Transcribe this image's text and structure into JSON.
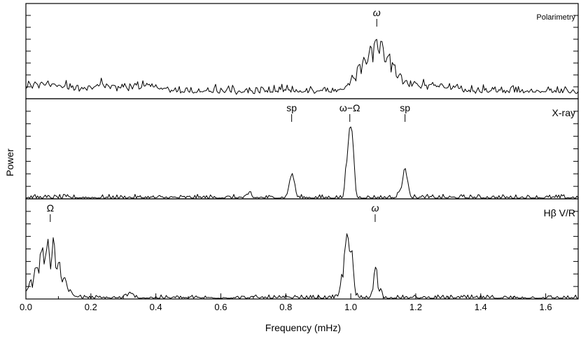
{
  "chart_data": {
    "type": "line",
    "xlabel": "Frequency (mHz)",
    "ylabel": "Power",
    "xlim": [
      0.0,
      1.7
    ],
    "x_ticks": [
      "0.0",
      "0.2",
      "0.4",
      "0.6",
      "0.8",
      "1.0",
      "1.2",
      "1.4",
      "1.6"
    ],
    "x_step": 0.004,
    "panels": [
      {
        "label": "Polarimetry",
        "ylim": [
          0,
          1
        ],
        "trace": {
          "baseline": 0.06,
          "noise": 0.08,
          "osc": 0.35,
          "humps": [
            {
              "f": 0.06,
              "a": 0.1,
              "w": 0.05
            },
            {
              "f": 0.24,
              "a": 0.08,
              "w": 0.04
            },
            {
              "f": 0.37,
              "a": 0.07,
              "w": 0.04
            },
            {
              "f": 1.08,
              "a": 0.56,
              "w": 0.045
            },
            {
              "f": 1.25,
              "a": 0.07,
              "w": 0.06
            }
          ]
        },
        "annotations": [
          {
            "text": "ω",
            "f": 1.08,
            "italic": true
          }
        ]
      },
      {
        "label": "X-ray",
        "ylim": [
          0,
          1
        ],
        "trace": {
          "baseline": 0.0,
          "noise": 0.045,
          "osc": 0.0,
          "humps": [
            {
              "f": 0.69,
              "a": 0.06,
              "w": 0.004
            },
            {
              "f": 0.815,
              "a": 0.2,
              "w": 0.006
            },
            {
              "f": 0.825,
              "a": 0.14,
              "w": 0.005
            },
            {
              "f": 0.985,
              "a": 0.22,
              "w": 0.004
            },
            {
              "f": 0.997,
              "a": 0.67,
              "w": 0.006
            },
            {
              "f": 1.007,
              "a": 0.4,
              "w": 0.005
            },
            {
              "f": 1.15,
              "a": 0.06,
              "w": 0.005
            },
            {
              "f": 1.165,
              "a": 0.26,
              "w": 0.006
            },
            {
              "f": 1.175,
              "a": 0.12,
              "w": 0.005
            }
          ]
        },
        "annotations": [
          {
            "text": "sp",
            "f": 0.818,
            "italic": false
          },
          {
            "text": "ω−Ω",
            "f": 0.997,
            "italic": false
          },
          {
            "text": "sp",
            "f": 1.167,
            "italic": false
          }
        ]
      },
      {
        "label": "Hβ V/R",
        "ylim": [
          0,
          1
        ],
        "trace": {
          "baseline": 0.0,
          "noise": 0.04,
          "osc": 0.55,
          "humps": [
            {
              "f": 0.03,
              "a": 0.22,
              "w": 0.02
            },
            {
              "f": 0.075,
              "a": 0.62,
              "w": 0.025
            },
            {
              "f": 0.12,
              "a": 0.08,
              "w": 0.02
            },
            {
              "f": 0.32,
              "a": 0.05,
              "w": 0.01
            },
            {
              "f": 0.985,
              "a": 0.55,
              "w": 0.01
            },
            {
              "f": 1.0,
              "a": 0.45,
              "w": 0.008
            },
            {
              "f": 1.075,
              "a": 0.38,
              "w": 0.006
            },
            {
              "f": 1.09,
              "a": 0.12,
              "w": 0.005
            }
          ]
        },
        "annotations": [
          {
            "text": "Ω",
            "f": 0.075,
            "italic": false
          },
          {
            "text": "ω",
            "f": 1.075,
            "italic": true
          }
        ]
      }
    ]
  }
}
